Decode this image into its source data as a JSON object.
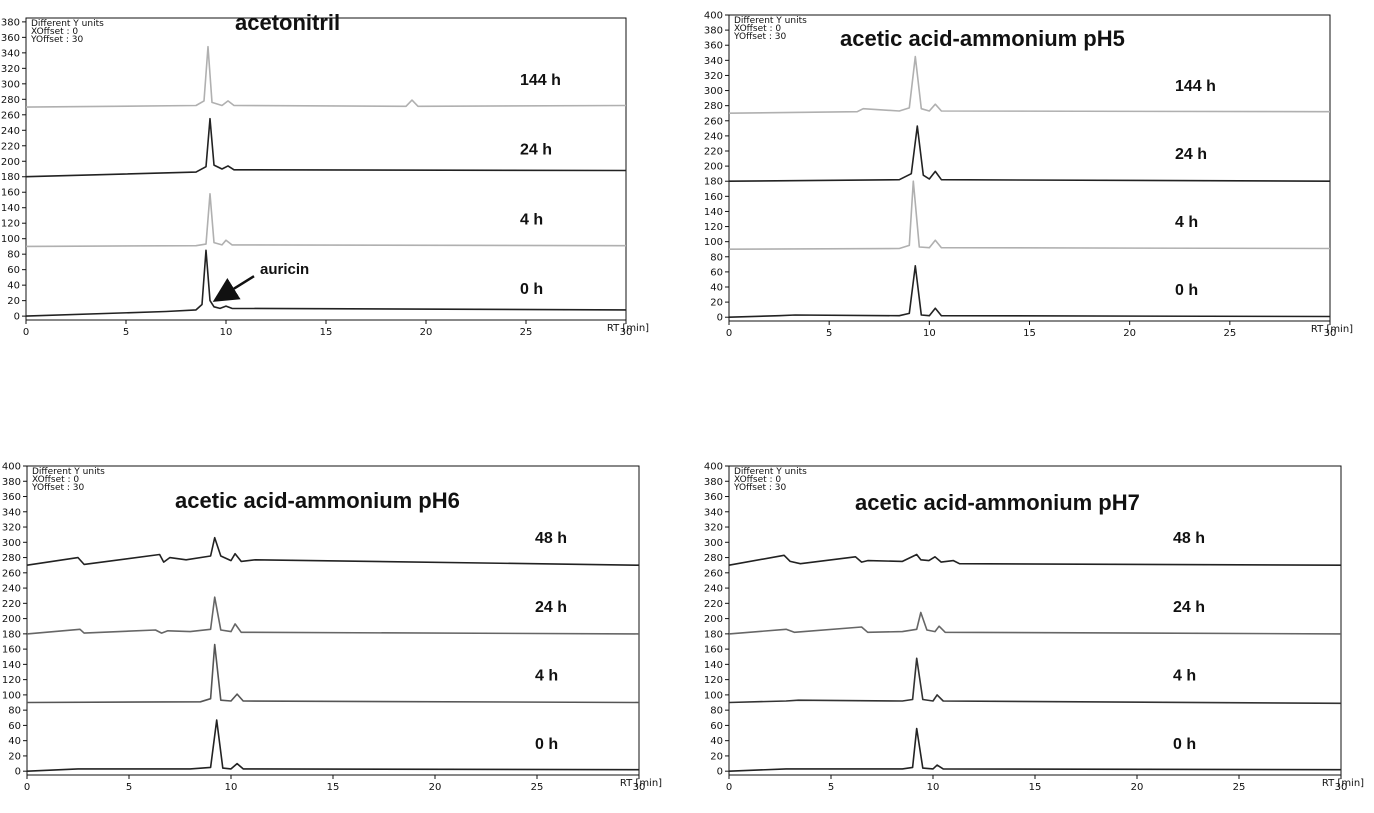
{
  "figure": {
    "axis_name": "RT [min]",
    "meta_lines": [
      "Different Y units",
      "XOffset : 0",
      "YOffset : 30"
    ]
  },
  "chart_data": [
    {
      "type": "line",
      "title": "acetonitril",
      "xlabel": "RT [min]",
      "xlim": [
        0,
        30
      ],
      "ylim": [
        -5,
        385
      ],
      "x_ticks": [
        0,
        5,
        10,
        15,
        20,
        25,
        30
      ],
      "y_ticks": [
        0,
        20,
        40,
        60,
        80,
        100,
        120,
        140,
        160,
        180,
        200,
        220,
        240,
        260,
        280,
        300,
        320,
        340,
        360,
        380
      ],
      "series": [
        {
          "name": "0 h",
          "baseline": 0,
          "color": "#222222",
          "x": [
            0,
            7,
            8.5,
            8.8,
            9.0,
            9.2,
            9.4,
            9.7,
            10.0,
            10.3,
            30
          ],
          "y": [
            0,
            6,
            8,
            15,
            85,
            20,
            12,
            10,
            13,
            10,
            8
          ]
        },
        {
          "name": "4 h",
          "baseline": 90,
          "color": "#b0b0b0",
          "x": [
            0,
            8.5,
            9.0,
            9.2,
            9.4,
            9.8,
            10.0,
            10.3,
            30
          ],
          "y": [
            90,
            91,
            93,
            158,
            95,
            92,
            98,
            92,
            91
          ]
        },
        {
          "name": "24 h",
          "baseline": 180,
          "color": "#222222",
          "x": [
            0,
            8.5,
            9.0,
            9.2,
            9.4,
            9.8,
            10.1,
            10.4,
            30
          ],
          "y": [
            180,
            186,
            193,
            255,
            195,
            190,
            194,
            189,
            188
          ]
        },
        {
          "name": "144 h",
          "baseline": 270,
          "color": "#b0b0b0",
          "x": [
            0,
            8.5,
            8.9,
            9.1,
            9.3,
            9.8,
            10.1,
            10.4,
            19.0,
            19.3,
            19.6,
            30
          ],
          "y": [
            270,
            272,
            278,
            348,
            276,
            272,
            278,
            272,
            271,
            279,
            271,
            272
          ]
        }
      ]
    },
    {
      "type": "line",
      "title": "acetic acid-ammonium pH5",
      "xlabel": "RT [min]",
      "xlim": [
        0,
        30
      ],
      "ylim": [
        -5,
        400
      ],
      "x_ticks": [
        0,
        5,
        10,
        15,
        20,
        25,
        30
      ],
      "y_ticks": [
        0,
        20,
        40,
        60,
        80,
        100,
        120,
        140,
        160,
        180,
        200,
        220,
        240,
        260,
        280,
        300,
        320,
        340,
        360,
        380,
        400
      ],
      "series": [
        {
          "name": "0 h",
          "baseline": 0,
          "color": "#222222",
          "x": [
            0,
            2.5,
            3.3,
            8.5,
            9.0,
            9.3,
            9.6,
            10.0,
            10.3,
            10.6,
            30
          ],
          "y": [
            0,
            2,
            3,
            2,
            5,
            68,
            3,
            2,
            12,
            2,
            1
          ]
        },
        {
          "name": "4 h",
          "baseline": 90,
          "color": "#b0b0b0",
          "x": [
            0,
            8.5,
            9.0,
            9.2,
            9.5,
            10.0,
            10.3,
            10.6,
            30
          ],
          "y": [
            90,
            91,
            95,
            180,
            93,
            92,
            102,
            92,
            91
          ]
        },
        {
          "name": "24 h",
          "baseline": 180,
          "color": "#222222",
          "x": [
            0,
            8.5,
            9.1,
            9.4,
            9.7,
            10.0,
            10.3,
            10.6,
            30
          ],
          "y": [
            180,
            182,
            190,
            253,
            188,
            183,
            193,
            182,
            180
          ]
        },
        {
          "name": "144 h",
          "baseline": 270,
          "color": "#b0b0b0",
          "x": [
            0,
            6.4,
            6.7,
            8.5,
            9.0,
            9.3,
            9.6,
            10.0,
            10.3,
            10.6,
            30
          ],
          "y": [
            270,
            272,
            276,
            273,
            277,
            345,
            276,
            273,
            282,
            273,
            272
          ]
        }
      ]
    },
    {
      "type": "line",
      "title": "acetic acid-ammonium pH6",
      "xlabel": "RT [min]",
      "xlim": [
        0,
        30
      ],
      "ylim": [
        -5,
        400
      ],
      "x_ticks": [
        0,
        5,
        10,
        15,
        20,
        25,
        30
      ],
      "y_ticks": [
        0,
        20,
        40,
        60,
        80,
        100,
        120,
        140,
        160,
        180,
        200,
        220,
        240,
        260,
        280,
        300,
        320,
        340,
        360,
        380,
        400
      ],
      "series": [
        {
          "name": "0 h",
          "baseline": 0,
          "color": "#222222",
          "x": [
            0,
            2.5,
            3.5,
            8.0,
            9.0,
            9.3,
            9.6,
            10.0,
            10.3,
            10.6,
            30
          ],
          "y": [
            0,
            3,
            3,
            3,
            5,
            67,
            4,
            3,
            10,
            3,
            2
          ]
        },
        {
          "name": "4 h",
          "baseline": 90,
          "color": "#555555",
          "x": [
            0,
            8.5,
            9.0,
            9.2,
            9.5,
            10.0,
            10.3,
            10.6,
            30
          ],
          "y": [
            90,
            91,
            95,
            166,
            93,
            92,
            101,
            92,
            90
          ]
        },
        {
          "name": "24 h",
          "baseline": 180,
          "color": "#666666",
          "x": [
            0,
            2.6,
            2.8,
            6.3,
            6.6,
            6.9,
            8.0,
            9.0,
            9.2,
            9.5,
            10.0,
            10.2,
            10.5,
            30
          ],
          "y": [
            180,
            186,
            181,
            185,
            181,
            184,
            183,
            186,
            228,
            185,
            183,
            193,
            182,
            180
          ]
        },
        {
          "name": "48 h",
          "baseline": 270,
          "color": "#222222",
          "x": [
            0,
            2.5,
            2.8,
            6.5,
            6.7,
            7.0,
            7.8,
            9.0,
            9.2,
            9.5,
            10.0,
            10.2,
            10.5,
            11.2,
            30
          ],
          "y": [
            270,
            280,
            271,
            284,
            274,
            280,
            277,
            282,
            306,
            282,
            276,
            285,
            275,
            277,
            270
          ]
        }
      ]
    },
    {
      "type": "line",
      "title": "acetic acid-ammonium pH7",
      "xlabel": "RT [min]",
      "xlim": [
        0,
        30
      ],
      "ylim": [
        -5,
        400
      ],
      "x_ticks": [
        0,
        5,
        10,
        15,
        20,
        25,
        30
      ],
      "y_ticks": [
        0,
        20,
        40,
        60,
        80,
        100,
        120,
        140,
        160,
        180,
        200,
        220,
        240,
        260,
        280,
        300,
        320,
        340,
        360,
        380,
        400
      ],
      "series": [
        {
          "name": "0 h",
          "baseline": 0,
          "color": "#222222",
          "x": [
            0,
            2.8,
            3.4,
            8.5,
            9.0,
            9.2,
            9.5,
            10.0,
            10.2,
            10.5,
            30
          ],
          "y": [
            0,
            3,
            3,
            3,
            5,
            56,
            4,
            3,
            8,
            3,
            2
          ]
        },
        {
          "name": "4 h",
          "baseline": 90,
          "color": "#333333",
          "x": [
            0,
            2.8,
            3.4,
            8.5,
            9.0,
            9.2,
            9.5,
            10.0,
            10.2,
            10.5,
            30
          ],
          "y": [
            90,
            92,
            93,
            92,
            94,
            148,
            94,
            92,
            100,
            92,
            89
          ]
        },
        {
          "name": "24 h",
          "baseline": 180,
          "color": "#666666",
          "x": [
            0,
            2.8,
            3.2,
            6.5,
            6.8,
            8.5,
            9.2,
            9.4,
            9.7,
            10.1,
            10.3,
            10.6,
            30
          ],
          "y": [
            180,
            186,
            182,
            189,
            182,
            183,
            186,
            208,
            185,
            183,
            190,
            182,
            180
          ]
        },
        {
          "name": "48 h",
          "baseline": 270,
          "color": "#222222",
          "x": [
            0,
            2.7,
            3.0,
            3.5,
            6.2,
            6.5,
            6.8,
            8.5,
            9.2,
            9.4,
            9.8,
            10.1,
            10.4,
            11.0,
            11.3,
            30
          ],
          "y": [
            270,
            283,
            275,
            272,
            281,
            274,
            276,
            275,
            284,
            277,
            276,
            281,
            274,
            276,
            272,
            270
          ]
        }
      ]
    }
  ],
  "annotation": {
    "text": "auricin",
    "panel": 0,
    "x": 9.3,
    "y": 18
  }
}
